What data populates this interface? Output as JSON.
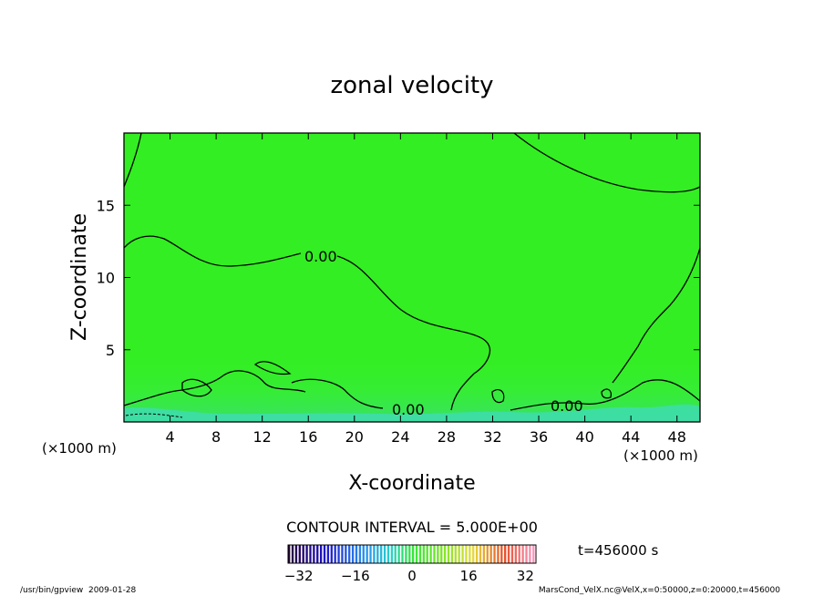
{
  "chart_data": {
    "type": "contour",
    "title": "zonal velocity",
    "xlabel": "X-coordinate",
    "ylabel": "Z-coordinate",
    "x_unit": "(×1000 m)",
    "y_unit": "(×1000 m)",
    "xlim": [
      0,
      50
    ],
    "ylim": [
      0,
      20
    ],
    "xticks": [
      4,
      8,
      12,
      16,
      20,
      24,
      28,
      32,
      36,
      40,
      44,
      48
    ],
    "yticks": [
      5,
      10,
      15
    ],
    "fill_color": "#33ee22",
    "contour_labels": [
      {
        "text": "0.00",
        "x": 17.5,
        "z": 11.5
      },
      {
        "text": "0.00",
        "x": 24.7,
        "z": 0.9
      },
      {
        "text": "0.00",
        "x": 38.5,
        "z": 1.1
      }
    ],
    "contour_interval_text": "CONTOUR INTERVAL = 5.000E+00",
    "time_text": "t=456000 s",
    "colorbar": {
      "min": -35,
      "max": 35,
      "ticks": [
        "−32",
        "−16",
        "0",
        "16",
        "32"
      ]
    },
    "footer_left": "/usr/bin/gpview  2009-01-28",
    "footer_right": "MarsCond_VelX.nc@VelX,x=0:50000,z=0:20000,t=456000"
  }
}
